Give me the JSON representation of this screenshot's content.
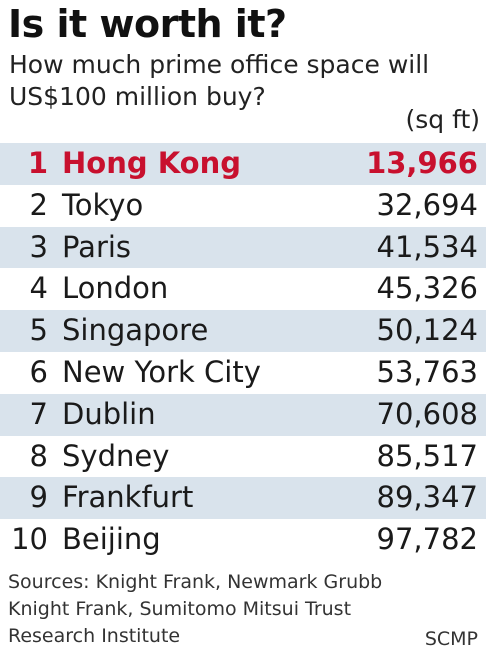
{
  "chart_data": {
    "type": "table",
    "title": "Is it worth it?",
    "subtitle_lines": [
      "How much prime office space will",
      "US$100 million buy?"
    ],
    "unit": "(sq ft)",
    "highlight_color": "#c8102e",
    "row_shade_color": "#d9e3ec",
    "rows": [
      {
        "rank": "1",
        "city": "Hong Kong",
        "value": "13,966"
      },
      {
        "rank": "2",
        "city": "Tokyo",
        "value": "32,694"
      },
      {
        "rank": "3",
        "city": "Paris",
        "value": "41,534"
      },
      {
        "rank": "4",
        "city": "London",
        "value": "45,326"
      },
      {
        "rank": "5",
        "city": "Singapore",
        "value": "50,124"
      },
      {
        "rank": "6",
        "city": "New York City",
        "value": "53,763"
      },
      {
        "rank": "7",
        "city": "Dublin",
        "value": "70,608"
      },
      {
        "rank": "8",
        "city": "Sydney",
        "value": "85,517"
      },
      {
        "rank": "9",
        "city": "Frankfurt",
        "value": "89,347"
      },
      {
        "rank": "10",
        "city": "Beijing",
        "value": "97,782"
      }
    ],
    "values": [
      13966,
      32694,
      41534,
      45326,
      50124,
      53763,
      70608,
      85517,
      89347,
      97782
    ],
    "highlighted_rank": "1"
  },
  "footer": {
    "sources_lines": [
      "Sources: Knight Frank, Newmark Grubb",
      "Knight Frank, Sumitomo Mitsui Trust",
      "Research Institute"
    ],
    "credit": "SCMP"
  }
}
